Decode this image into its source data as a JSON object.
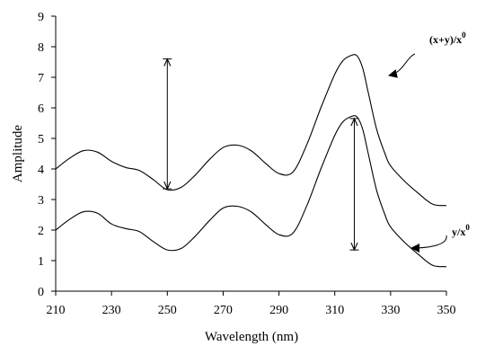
{
  "chart_data": {
    "type": "line",
    "xlabel": "Wavelength (nm)",
    "ylabel": "Amplitude",
    "xlim": [
      210,
      350
    ],
    "ylim": [
      0,
      9
    ],
    "xticks": [
      210,
      230,
      250,
      270,
      290,
      310,
      330,
      350
    ],
    "yticks": [
      0,
      1,
      2,
      3,
      4,
      5,
      6,
      7,
      8,
      9
    ],
    "grid": false,
    "legend": "none",
    "series": [
      {
        "label_main": "(x+y)/x",
        "label_sup": "0",
        "x": [
          210,
          215,
          220,
          225,
          230,
          235,
          240,
          245,
          250,
          255,
          260,
          265,
          270,
          275,
          280,
          285,
          290,
          295,
          300,
          305,
          310,
          313,
          316,
          318,
          320,
          322,
          325,
          328,
          330,
          335,
          340,
          345,
          350
        ],
        "y": [
          4.0,
          4.35,
          4.6,
          4.55,
          4.25,
          4.05,
          3.95,
          3.65,
          3.32,
          3.4,
          3.8,
          4.3,
          4.7,
          4.78,
          4.6,
          4.2,
          3.85,
          3.9,
          4.8,
          6.0,
          7.1,
          7.55,
          7.72,
          7.7,
          7.3,
          6.5,
          5.3,
          4.5,
          4.1,
          3.6,
          3.2,
          2.85,
          2.8
        ]
      },
      {
        "label_main": "y/x",
        "label_sup": "0",
        "x": [
          210,
          215,
          220,
          225,
          230,
          235,
          240,
          245,
          250,
          255,
          260,
          265,
          270,
          275,
          280,
          285,
          290,
          295,
          300,
          305,
          310,
          313,
          316,
          318,
          320,
          322,
          325,
          328,
          330,
          335,
          340,
          345,
          350
        ],
        "y": [
          2.0,
          2.35,
          2.6,
          2.55,
          2.2,
          2.05,
          1.95,
          1.62,
          1.35,
          1.4,
          1.8,
          2.3,
          2.72,
          2.78,
          2.6,
          2.2,
          1.85,
          1.9,
          2.8,
          4.0,
          5.1,
          5.55,
          5.72,
          5.7,
          5.3,
          4.5,
          3.3,
          2.5,
          2.1,
          1.6,
          1.2,
          0.85,
          0.8
        ]
      }
    ],
    "annotations": [
      {
        "type": "double-arrow",
        "x": 250,
        "y1": 3.35,
        "y2": 7.6
      },
      {
        "type": "double-arrow",
        "x": 317,
        "y1": 1.35,
        "y2": 5.65
      }
    ]
  }
}
